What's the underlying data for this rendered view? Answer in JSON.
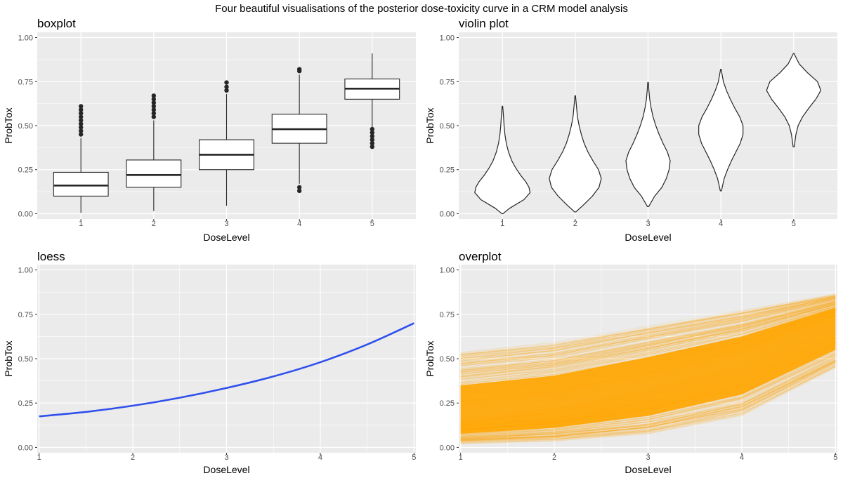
{
  "figure_title": "Four beautiful visualisations of the posterior dose-toxicity curve in a CRM model analysis",
  "colors": {
    "panel_bg": "#ebebeb",
    "grid": "#ffffff",
    "loess_line": "#3050ec",
    "overplot_line": "#ffa500",
    "box_stroke": "#262626"
  },
  "chart_data": [
    {
      "type": "box",
      "title": "boxplot",
      "xlabel": "DoseLevel",
      "ylabel": "ProbTox",
      "categories": [
        "1",
        "2",
        "3",
        "4",
        "5"
      ],
      "ylim": [
        -0.03,
        1.03
      ],
      "yticks": [
        "0.00",
        "0.25",
        "0.50",
        "0.75",
        "1.00"
      ],
      "boxes": [
        {
          "min": 0.005,
          "q1": 0.1,
          "median": 0.16,
          "q3": 0.235,
          "max": 0.43,
          "outliers": [
            0.45,
            0.47,
            0.49,
            0.51,
            0.53,
            0.55,
            0.57,
            0.59,
            0.61
          ]
        },
        {
          "min": 0.015,
          "q1": 0.15,
          "median": 0.22,
          "q3": 0.305,
          "max": 0.53,
          "outliers": [
            0.55,
            0.57,
            0.59,
            0.61,
            0.63,
            0.65,
            0.67
          ]
        },
        {
          "min": 0.045,
          "q1": 0.25,
          "median": 0.335,
          "q3": 0.42,
          "max": 0.68,
          "outliers": [
            0.7,
            0.72,
            0.745
          ]
        },
        {
          "min": 0.17,
          "q1": 0.4,
          "median": 0.48,
          "q3": 0.565,
          "max": 0.79,
          "outliers": [
            0.13,
            0.15,
            0.81,
            0.82
          ]
        },
        {
          "min": 0.49,
          "q1": 0.65,
          "median": 0.71,
          "q3": 0.765,
          "max": 0.91,
          "outliers": [
            0.38,
            0.4,
            0.42,
            0.44,
            0.46,
            0.48
          ]
        }
      ]
    },
    {
      "type": "violin",
      "title": "violin plot",
      "xlabel": "DoseLevel",
      "ylabel": "ProbTox",
      "categories": [
        "1",
        "2",
        "3",
        "4",
        "5"
      ],
      "ylim": [
        -0.03,
        1.03
      ],
      "yticks": [
        "0.00",
        "0.25",
        "0.50",
        "0.75",
        "1.00"
      ],
      "violins": [
        {
          "y": [
            0.0,
            0.03,
            0.08,
            0.12,
            0.15,
            0.18,
            0.22,
            0.26,
            0.3,
            0.35,
            0.4,
            0.45,
            0.5,
            0.55,
            0.61
          ],
          "w": [
            0.02,
            0.25,
            0.78,
            1.0,
            0.96,
            0.85,
            0.65,
            0.48,
            0.34,
            0.22,
            0.14,
            0.09,
            0.06,
            0.04,
            0.01
          ]
        },
        {
          "y": [
            0.01,
            0.05,
            0.1,
            0.15,
            0.2,
            0.25,
            0.3,
            0.35,
            0.4,
            0.45,
            0.5,
            0.55,
            0.6,
            0.67
          ],
          "w": [
            0.02,
            0.3,
            0.62,
            0.86,
            0.94,
            0.84,
            0.64,
            0.46,
            0.32,
            0.22,
            0.14,
            0.08,
            0.05,
            0.01
          ]
        },
        {
          "y": [
            0.04,
            0.1,
            0.15,
            0.2,
            0.25,
            0.3,
            0.35,
            0.4,
            0.45,
            0.5,
            0.55,
            0.6,
            0.65,
            0.7,
            0.745
          ],
          "w": [
            0.02,
            0.24,
            0.5,
            0.66,
            0.76,
            0.8,
            0.7,
            0.54,
            0.4,
            0.28,
            0.18,
            0.11,
            0.06,
            0.03,
            0.01
          ]
        },
        {
          "y": [
            0.13,
            0.2,
            0.25,
            0.3,
            0.35,
            0.4,
            0.45,
            0.5,
            0.55,
            0.6,
            0.65,
            0.7,
            0.75,
            0.82
          ],
          "w": [
            0.02,
            0.12,
            0.24,
            0.38,
            0.54,
            0.7,
            0.8,
            0.8,
            0.68,
            0.5,
            0.34,
            0.2,
            0.09,
            0.01
          ]
        },
        {
          "y": [
            0.38,
            0.45,
            0.5,
            0.55,
            0.6,
            0.65,
            0.7,
            0.75,
            0.8,
            0.85,
            0.91
          ],
          "w": [
            0.02,
            0.08,
            0.16,
            0.32,
            0.55,
            0.8,
            0.98,
            0.86,
            0.5,
            0.2,
            0.01
          ]
        }
      ]
    },
    {
      "type": "line",
      "title": "loess",
      "xlabel": "DoseLevel",
      "ylabel": "ProbTox",
      "xticks": [
        "1",
        "2",
        "3",
        "4",
        "5"
      ],
      "xlim": [
        0.98,
        5.02
      ],
      "ylim": [
        -0.03,
        1.03
      ],
      "yticks": [
        "0.00",
        "0.25",
        "0.50",
        "0.75",
        "1.00"
      ],
      "series": [
        {
          "name": "loess",
          "x": [
            1,
            1.5,
            2,
            2.5,
            3,
            3.5,
            4,
            4.5,
            5
          ],
          "y": [
            0.175,
            0.2,
            0.235,
            0.28,
            0.335,
            0.4,
            0.48,
            0.58,
            0.7
          ]
        }
      ]
    },
    {
      "type": "line",
      "title": "overplot",
      "xlabel": "DoseLevel",
      "ylabel": "ProbTox",
      "xticks": [
        "1",
        "2",
        "3",
        "4",
        "5"
      ],
      "xlim": [
        0.98,
        5.02
      ],
      "ylim": [
        -0.03,
        1.03
      ],
      "yticks": [
        "0.00",
        "0.25",
        "0.50",
        "0.75",
        "1.00"
      ],
      "series_summary": {
        "x": [
          1,
          2,
          3,
          4,
          5
        ],
        "median": [
          0.16,
          0.22,
          0.335,
          0.48,
          0.71
        ],
        "low": [
          0.01,
          0.02,
          0.05,
          0.15,
          0.42
        ],
        "high": [
          0.58,
          0.63,
          0.72,
          0.8,
          0.88
        ]
      }
    }
  ]
}
